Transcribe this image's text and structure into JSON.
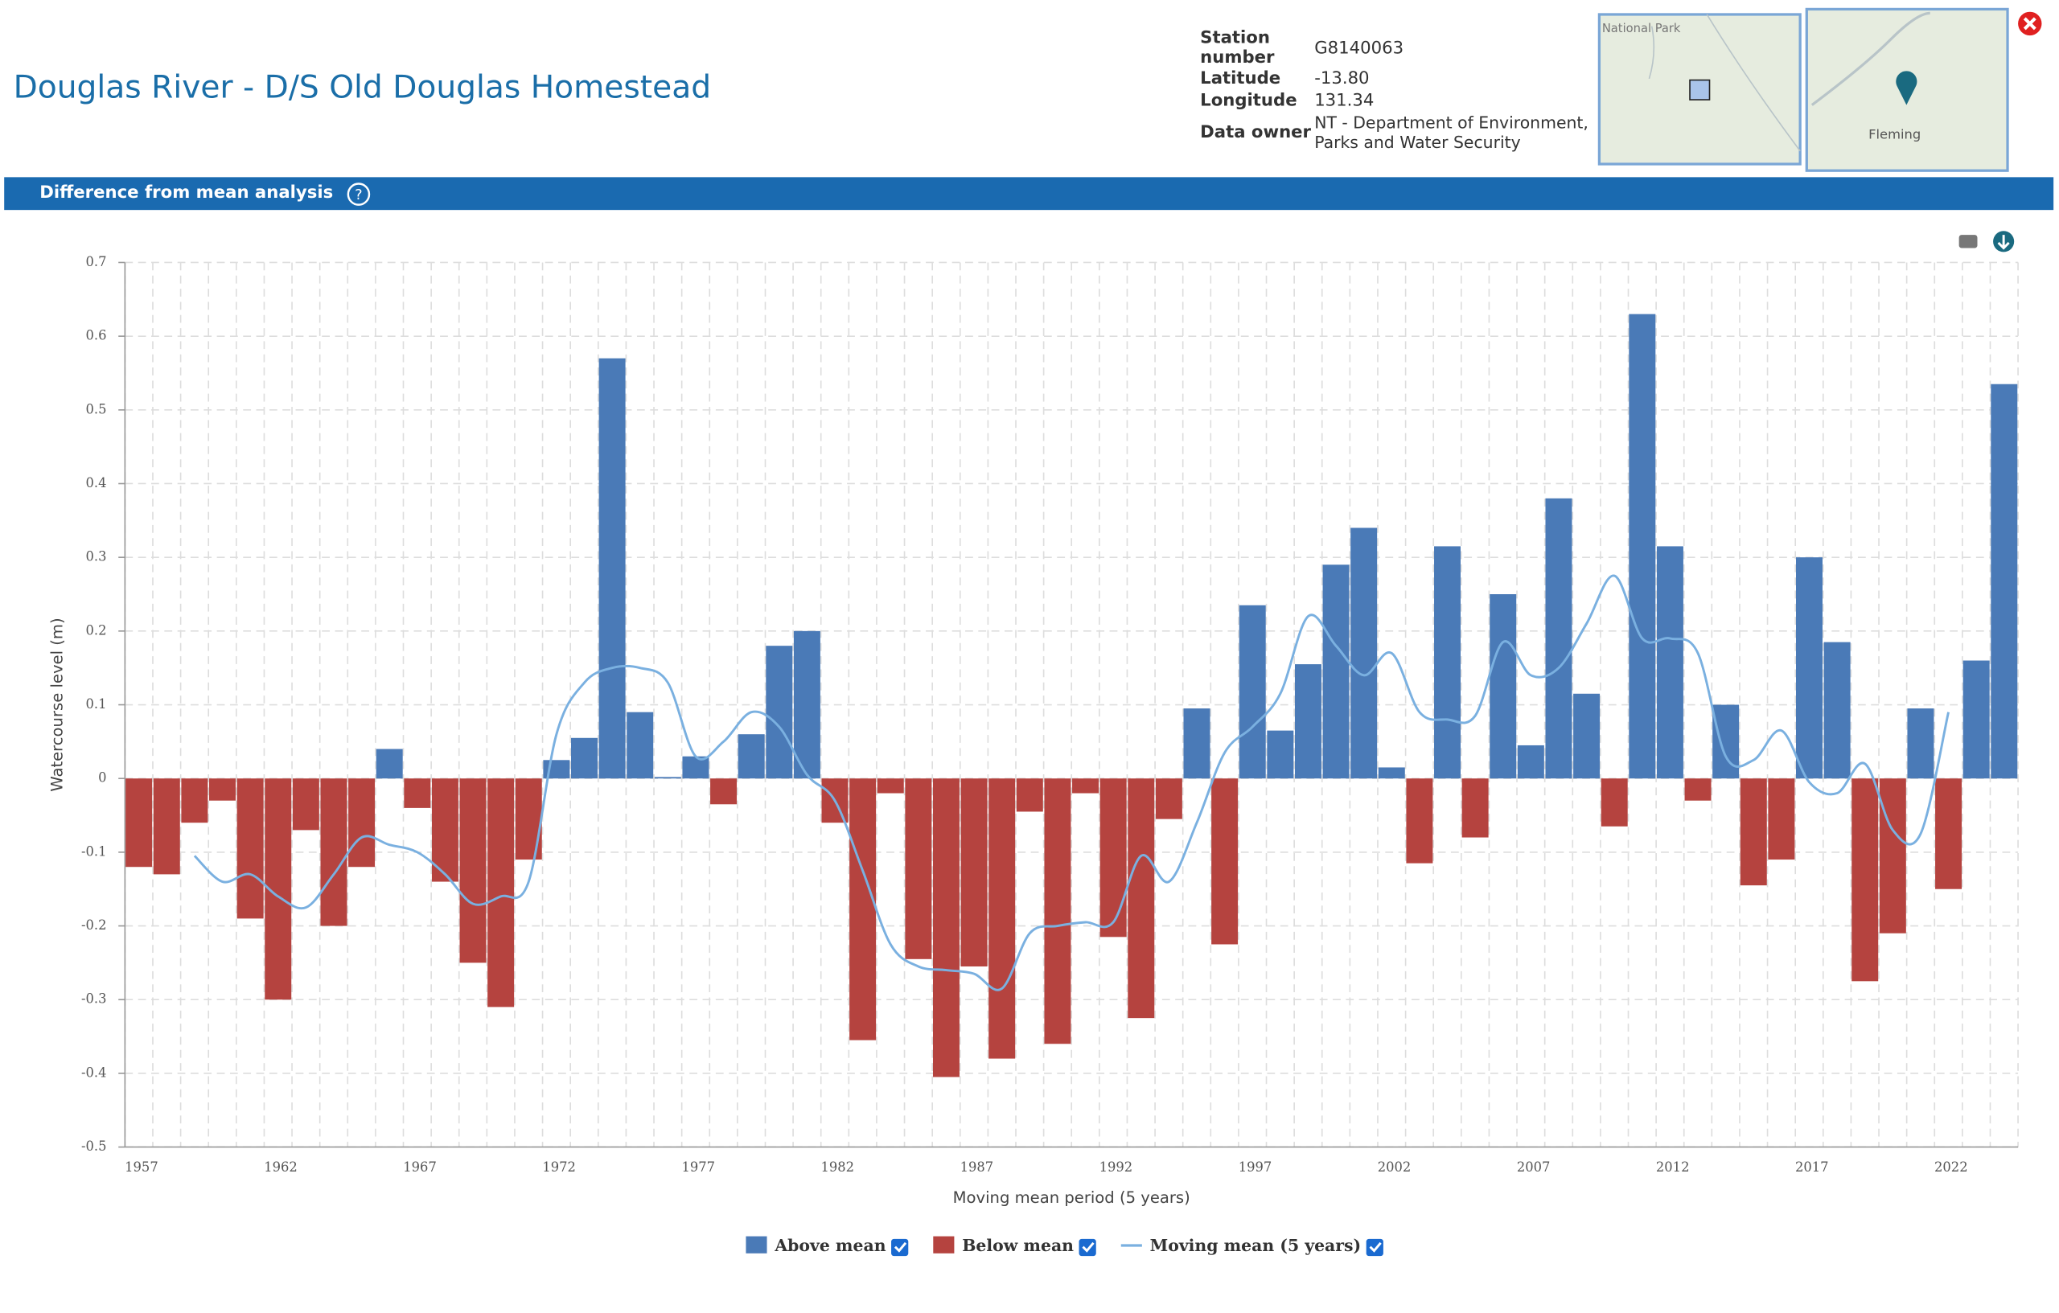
{
  "header": {
    "title": "Douglas River - D/S Old Douglas Homestead",
    "station": [
      {
        "label": "Station number",
        "value": "G8140063"
      },
      {
        "label": "Latitude",
        "value": "-13.80"
      },
      {
        "label": "Longitude",
        "value": "131.34"
      },
      {
        "label": "Data owner",
        "value": "NT - Department of Environment, Parks and Water Security"
      }
    ],
    "maps": [
      "National Park",
      "Fleming"
    ]
  },
  "section_title": "Difference from mean analysis",
  "chart_data": {
    "type": "bar",
    "x_label": "Moving mean period (5 years)",
    "y_label": "Watercourse level (m)",
    "categories": [
      "1957",
      null,
      null,
      null,
      null,
      "1962",
      null,
      null,
      null,
      null,
      "1967",
      null,
      null,
      null,
      null,
      "1972",
      null,
      null,
      null,
      null,
      "1977",
      null,
      null,
      null,
      null,
      "1982",
      null,
      null,
      null,
      null,
      "1987",
      null,
      null,
      null,
      null,
      "1992",
      null,
      null,
      null,
      null,
      "1997",
      null,
      null,
      null,
      null,
      "2002",
      null,
      null,
      null,
      null,
      "2007",
      null,
      null,
      null,
      null,
      "2012",
      null,
      null,
      null,
      null,
      "2017",
      null,
      null,
      null,
      null,
      "2022",
      null,
      null
    ],
    "series": [
      {
        "name": "Above mean",
        "color": "#4a7ab7",
        "values": [
          null,
          null,
          null,
          null,
          null,
          null,
          null,
          null,
          null,
          0.04,
          null,
          null,
          null,
          null,
          null,
          0.025,
          0.055,
          0.57,
          0.09,
          0.002,
          0.03,
          null,
          0.06,
          0.18,
          0.2,
          null,
          null,
          null,
          null,
          null,
          null,
          null,
          null,
          null,
          null,
          null,
          null,
          null,
          0.095,
          null,
          0.235,
          0.065,
          0.155,
          0.29,
          0.34,
          0.015,
          null,
          0.315,
          null,
          0.25,
          0.045,
          0.38,
          0.115,
          null,
          0.63,
          0.315,
          null,
          0.1,
          null,
          null,
          0.3,
          0.185,
          null,
          null,
          0.095,
          null,
          0.16,
          0.535
        ]
      },
      {
        "name": "Below mean",
        "color": "#b5433f",
        "values": [
          -0.12,
          -0.13,
          -0.06,
          -0.03,
          -0.19,
          -0.3,
          -0.07,
          -0.2,
          -0.12,
          null,
          -0.04,
          -0.14,
          -0.25,
          -0.31,
          -0.11,
          null,
          null,
          null,
          null,
          null,
          null,
          -0.035,
          null,
          null,
          null,
          -0.06,
          -0.355,
          -0.02,
          -0.245,
          -0.405,
          -0.255,
          -0.38,
          -0.045,
          -0.36,
          -0.02,
          -0.215,
          -0.325,
          -0.055,
          null,
          -0.225,
          null,
          null,
          null,
          null,
          null,
          null,
          -0.115,
          null,
          -0.08,
          null,
          null,
          null,
          null,
          -0.065,
          null,
          null,
          -0.03,
          null,
          -0.145,
          -0.11,
          null,
          null,
          -0.275,
          -0.21,
          null,
          -0.15,
          null,
          null
        ]
      },
      {
        "name": "Moving mean (5 years)",
        "type": "line",
        "color": "#7ab0e0",
        "values": [
          null,
          null,
          -0.105,
          -0.14,
          -0.13,
          -0.16,
          -0.175,
          -0.13,
          -0.08,
          -0.09,
          -0.1,
          -0.13,
          -0.17,
          -0.16,
          -0.14,
          0.06,
          0.13,
          0.15,
          0.15,
          0.13,
          0.03,
          0.05,
          0.09,
          0.07,
          0.005,
          -0.03,
          -0.125,
          -0.225,
          -0.255,
          -0.26,
          -0.265,
          -0.285,
          -0.21,
          -0.2,
          -0.195,
          -0.195,
          -0.105,
          -0.14,
          -0.06,
          0.035,
          0.07,
          0.115,
          0.22,
          0.18,
          0.14,
          0.17,
          0.09,
          0.08,
          0.085,
          0.185,
          0.14,
          0.15,
          0.21,
          0.275,
          0.19,
          0.19,
          0.17,
          0.03,
          0.025,
          0.065,
          -0.005,
          -0.02,
          0.02,
          -0.07,
          -0.075,
          0.09,
          null,
          null
        ]
      }
    ],
    "ylim": [
      -0.5,
      0.7
    ],
    "yticks": [
      -0.5,
      -0.4,
      -0.3,
      -0.2,
      -0.1,
      0,
      0.1,
      0.2,
      0.3,
      0.4,
      0.5,
      0.6,
      0.7
    ],
    "grid": true
  }
}
